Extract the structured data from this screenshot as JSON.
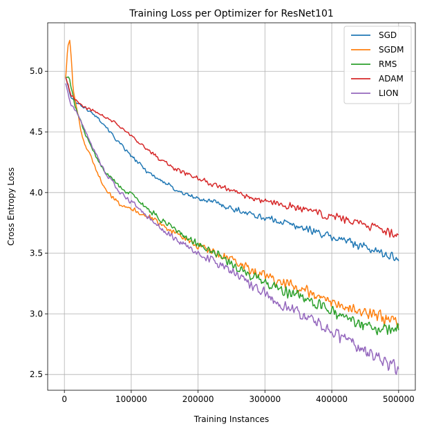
{
  "chart_data": {
    "type": "line",
    "title": "Training Loss per Optimizer for ResNet101",
    "xlabel": "Training Instances",
    "ylabel": "Cross Entropy Loss",
    "xlim": [
      -25000,
      525000
    ],
    "ylim": [
      2.37,
      5.4
    ],
    "x_ticks": [
      0,
      100000,
      200000,
      300000,
      400000,
      500000
    ],
    "x_tick_labels": [
      "0",
      "100000",
      "200000",
      "300000",
      "400000",
      "500000"
    ],
    "y_ticks": [
      2.5,
      3.0,
      3.5,
      4.0,
      4.5,
      5.0
    ],
    "y_tick_labels": [
      "2.5",
      "3.0",
      "3.5",
      "4.0",
      "4.5",
      "5.0"
    ],
    "grid": true,
    "legend_position": "top-right",
    "series": [
      {
        "name": "SGD",
        "color": "#1f77b4",
        "x": [
          2000,
          10000,
          20000,
          30000,
          40000,
          50000,
          60000,
          80000,
          100000,
          125000,
          150000,
          175000,
          200000,
          225000,
          250000,
          275000,
          300000,
          325000,
          350000,
          375000,
          400000,
          425000,
          450000,
          475000,
          500000
        ],
        "y": [
          4.95,
          4.78,
          4.74,
          4.7,
          4.66,
          4.62,
          4.56,
          4.42,
          4.3,
          4.17,
          4.08,
          4.0,
          3.95,
          3.92,
          3.87,
          3.83,
          3.79,
          3.76,
          3.72,
          3.68,
          3.63,
          3.6,
          3.55,
          3.5,
          3.45
        ]
      },
      {
        "name": "SGDM",
        "color": "#ff7f0e",
        "x": [
          2000,
          5000,
          8000,
          10000,
          13000,
          16000,
          20000,
          25000,
          30000,
          35000,
          40000,
          45000,
          50000,
          60000,
          70000,
          80000,
          100000,
          125000,
          150000,
          175000,
          200000,
          225000,
          250000,
          275000,
          300000,
          325000,
          350000,
          375000,
          400000,
          425000,
          450000,
          475000,
          500000
        ],
        "y": [
          4.95,
          5.2,
          5.25,
          5.15,
          4.85,
          4.75,
          4.65,
          4.5,
          4.4,
          4.35,
          4.3,
          4.22,
          4.15,
          4.05,
          3.97,
          3.92,
          3.87,
          3.8,
          3.72,
          3.64,
          3.56,
          3.5,
          3.44,
          3.37,
          3.31,
          3.26,
          3.21,
          3.16,
          3.1,
          3.05,
          3.0,
          2.97,
          2.93
        ]
      },
      {
        "name": "RMS",
        "color": "#2ca02c",
        "x": [
          2000,
          5000,
          8000,
          12000,
          16000,
          20000,
          30000,
          40000,
          50000,
          60000,
          80000,
          100000,
          125000,
          150000,
          175000,
          200000,
          225000,
          250000,
          275000,
          300000,
          325000,
          350000,
          375000,
          400000,
          425000,
          450000,
          475000,
          500000
        ],
        "y": [
          4.95,
          4.95,
          4.93,
          4.82,
          4.72,
          4.65,
          4.5,
          4.37,
          4.27,
          4.18,
          4.06,
          3.98,
          3.86,
          3.75,
          3.66,
          3.57,
          3.5,
          3.42,
          3.33,
          3.26,
          3.2,
          3.14,
          3.08,
          3.02,
          2.97,
          2.92,
          2.88,
          2.87
        ]
      },
      {
        "name": "ADAM",
        "color": "#d62728",
        "x": [
          2000,
          10000,
          20000,
          30000,
          40000,
          50000,
          60000,
          80000,
          100000,
          125000,
          150000,
          175000,
          200000,
          225000,
          250000,
          275000,
          300000,
          325000,
          350000,
          375000,
          400000,
          425000,
          450000,
          475000,
          500000
        ],
        "y": [
          4.95,
          4.8,
          4.75,
          4.7,
          4.68,
          4.66,
          4.63,
          4.56,
          4.47,
          4.35,
          4.25,
          4.17,
          4.12,
          4.06,
          4.02,
          3.97,
          3.93,
          3.9,
          3.87,
          3.84,
          3.8,
          3.77,
          3.73,
          3.69,
          3.65
        ]
      },
      {
        "name": "LION",
        "color": "#9467bd",
        "x": [
          2000,
          10000,
          20000,
          30000,
          40000,
          50000,
          60000,
          80000,
          100000,
          125000,
          150000,
          175000,
          200000,
          225000,
          250000,
          275000,
          300000,
          325000,
          350000,
          375000,
          400000,
          425000,
          450000,
          475000,
          500000
        ],
        "y": [
          4.9,
          4.72,
          4.65,
          4.52,
          4.4,
          4.28,
          4.18,
          4.02,
          3.92,
          3.8,
          3.68,
          3.58,
          3.5,
          3.43,
          3.35,
          3.26,
          3.17,
          3.08,
          3.01,
          2.93,
          2.85,
          2.78,
          2.69,
          2.62,
          2.53
        ]
      }
    ]
  }
}
